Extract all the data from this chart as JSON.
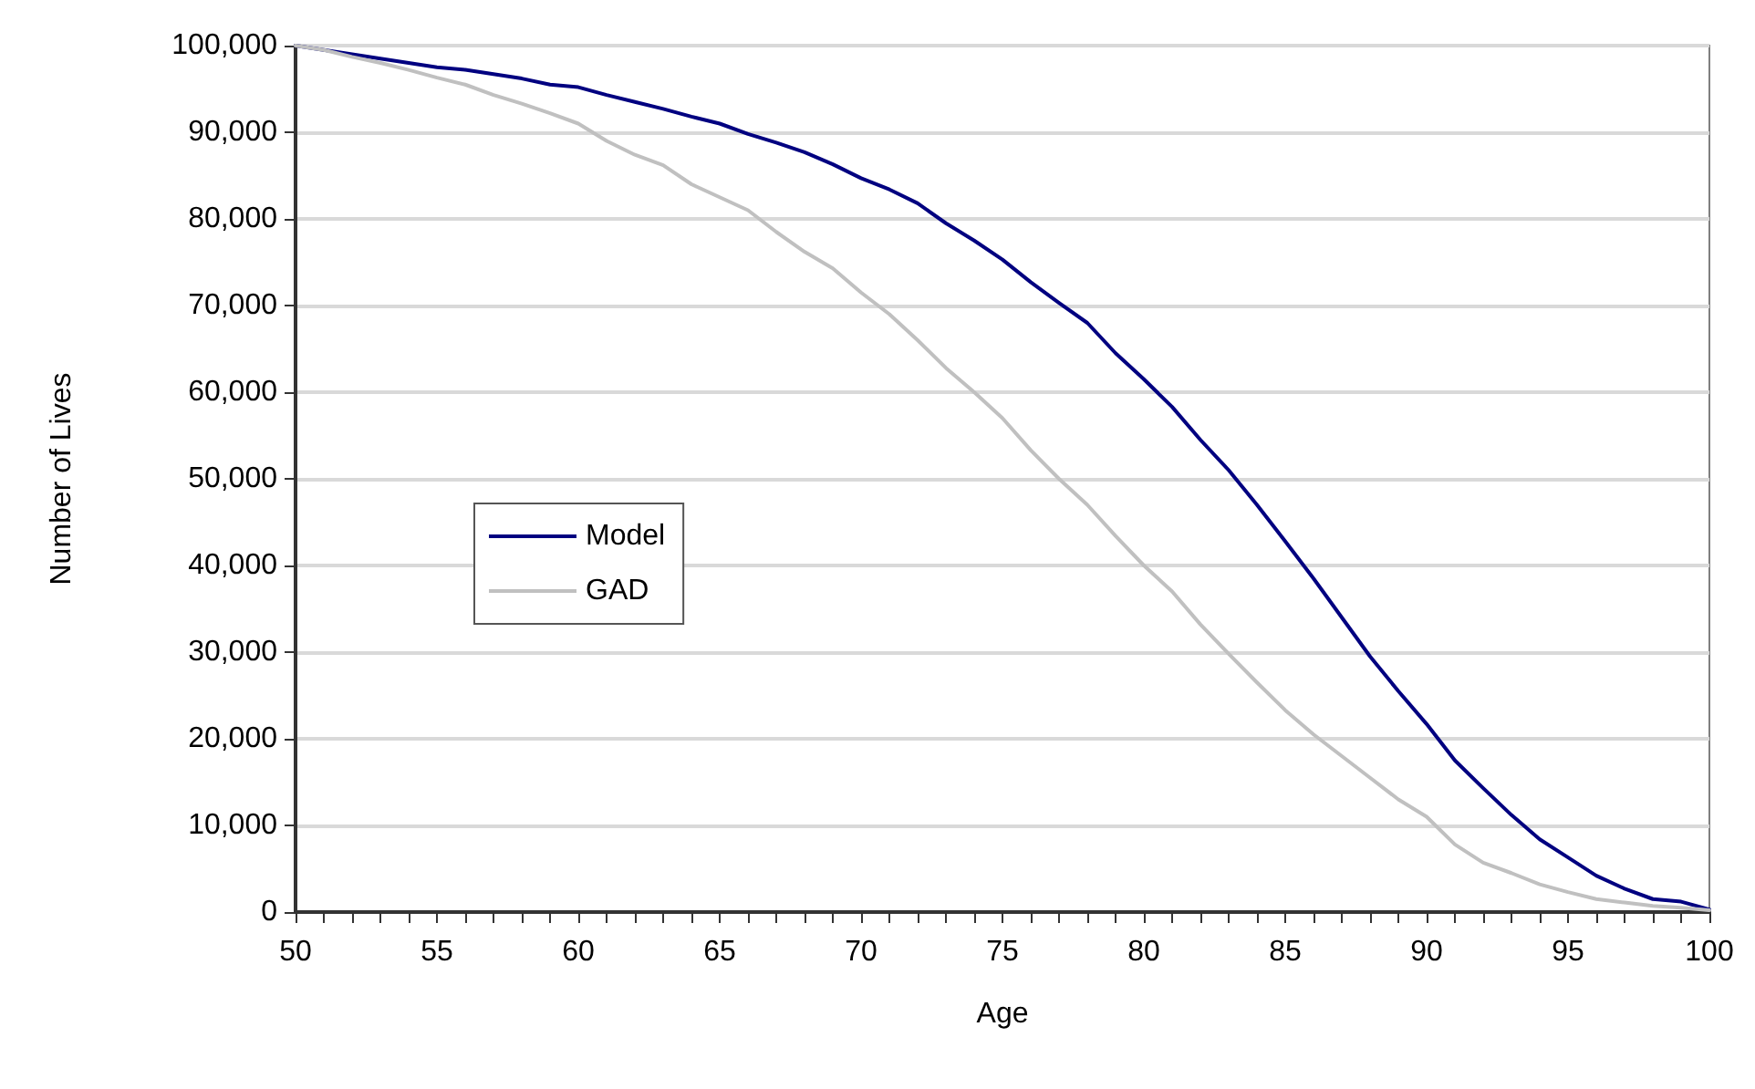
{
  "chart_data": {
    "type": "line",
    "xlabel": "Age",
    "ylabel": "Number of Lives",
    "x": [
      50,
      51,
      52,
      53,
      54,
      55,
      56,
      57,
      58,
      59,
      60,
      61,
      62,
      63,
      64,
      65,
      66,
      67,
      68,
      69,
      70,
      71,
      72,
      73,
      74,
      75,
      76,
      77,
      78,
      79,
      80,
      81,
      82,
      83,
      84,
      85,
      86,
      87,
      88,
      89,
      90,
      91,
      92,
      93,
      94,
      95,
      96,
      97,
      98,
      99,
      100
    ],
    "series": [
      {
        "name": "Model",
        "color": "#000080",
        "values": [
          100000,
          99500,
          99000,
          98500,
          98000,
          97500,
          97200,
          96700,
          96200,
          95500,
          95200,
          94300,
          93500,
          92700,
          91800,
          91000,
          89800,
          88800,
          87700,
          86300,
          84700,
          83400,
          81800,
          79500,
          77500,
          75300,
          72700,
          70300,
          68000,
          64500,
          61500,
          58300,
          54500,
          51000,
          47000,
          42800,
          38500,
          34000,
          29500,
          25500,
          21700,
          17500,
          14300,
          11200,
          8400,
          6300,
          4200,
          2700,
          1500,
          1200,
          300
        ]
      },
      {
        "name": "GAD",
        "color": "#c0c0c0",
        "values": [
          100000,
          99500,
          98700,
          98000,
          97200,
          96300,
          95500,
          94300,
          93300,
          92200,
          91000,
          89000,
          87400,
          86200,
          84000,
          82500,
          81000,
          78500,
          76200,
          74300,
          71500,
          69000,
          66000,
          62800,
          60000,
          57000,
          53300,
          50000,
          47000,
          43400,
          40000,
          37000,
          33200,
          29800,
          26500,
          23300,
          20500,
          18000,
          15500,
          13000,
          11000,
          7800,
          5700,
          4500,
          3200,
          2300,
          1500,
          1100,
          700,
          500,
          200
        ]
      }
    ],
    "xlim": [
      50,
      100
    ],
    "xticks": [
      50,
      {
        "value": 51,
        "label": null
      },
      {
        "value": 52,
        "label": null
      },
      {
        "value": 53,
        "label": null
      },
      {
        "value": 54,
        "label": null
      },
      55,
      {
        "value": 56,
        "label": null
      },
      {
        "value": 57,
        "label": null
      },
      {
        "value": 58,
        "label": null
      },
      {
        "value": 59,
        "label": null
      },
      60,
      {
        "value": 61,
        "label": null
      },
      {
        "value": 62,
        "label": null
      },
      {
        "value": 63,
        "label": null
      },
      {
        "value": 64,
        "label": null
      },
      65,
      {
        "value": 66,
        "label": null
      },
      {
        "value": 67,
        "label": null
      },
      {
        "value": 68,
        "label": null
      },
      {
        "value": 69,
        "label": null
      },
      70,
      {
        "value": 71,
        "label": null
      },
      {
        "value": 72,
        "label": null
      },
      {
        "value": 73,
        "label": null
      },
      {
        "value": 74,
        "label": null
      },
      75,
      {
        "value": 76,
        "label": null
      },
      {
        "value": 77,
        "label": null
      },
      {
        "value": 78,
        "label": null
      },
      {
        "value": 79,
        "label": null
      },
      80,
      {
        "value": 81,
        "label": null
      },
      {
        "value": 82,
        "label": null
      },
      {
        "value": 83,
        "label": null
      },
      {
        "value": 84,
        "label": null
      },
      85,
      {
        "value": 86,
        "label": null
      },
      {
        "value": 87,
        "label": null
      },
      {
        "value": 88,
        "label": null
      },
      {
        "value": 89,
        "label": null
      },
      90,
      {
        "value": 91,
        "label": null
      },
      {
        "value": 92,
        "label": null
      },
      {
        "value": 93,
        "label": null
      },
      {
        "value": 94,
        "label": null
      },
      95,
      {
        "value": 96,
        "label": null
      },
      {
        "value": 97,
        "label": null
      },
      {
        "value": 98,
        "label": null
      },
      {
        "value": 99,
        "label": null
      },
      100
    ],
    "ylim": [
      0,
      100000
    ],
    "yticks": [
      0,
      {
        "value": 10000,
        "label": "10,000"
      },
      {
        "value": 20000,
        "label": "20,000"
      },
      {
        "value": 30000,
        "label": "30,000"
      },
      {
        "value": 40000,
        "label": "40,000"
      },
      {
        "value": 50000,
        "label": "50,000"
      },
      {
        "value": 60000,
        "label": "60,000"
      },
      {
        "value": 70000,
        "label": "70,000"
      },
      {
        "value": 80000,
        "label": "80,000"
      },
      {
        "value": 90000,
        "label": "90,000"
      },
      {
        "value": 100000,
        "label": "100,000"
      }
    ],
    "grid": "y",
    "legend": "left",
    "marker": "none",
    "line_style": "solid"
  }
}
